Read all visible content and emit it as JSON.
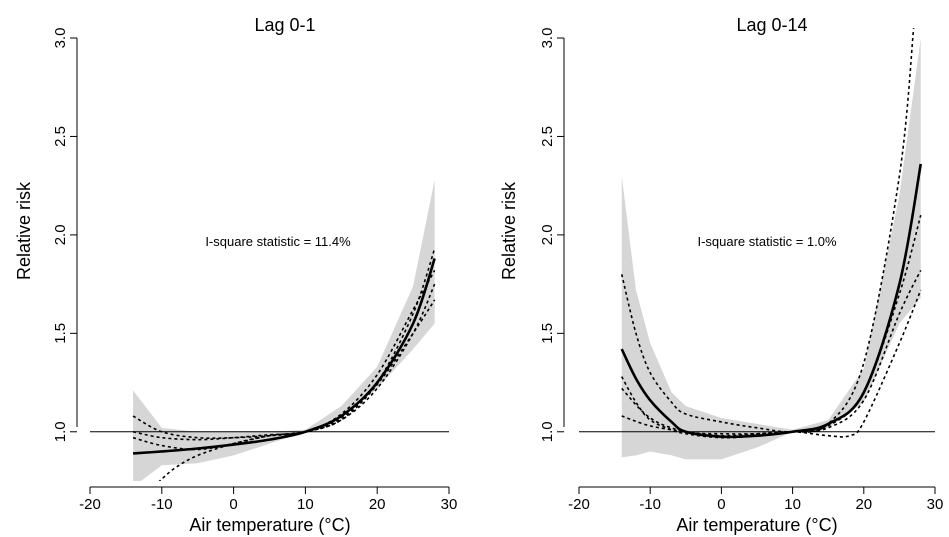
{
  "chart_data": [
    {
      "type": "line",
      "title": "Lag 0-1",
      "xlabel": "Air temperature (°C)",
      "ylabel": "Relative risk",
      "xlim": [
        -20,
        30
      ],
      "ylim": [
        0.75,
        3.0
      ],
      "xticks": [
        -20,
        -10,
        0,
        10,
        20,
        30
      ],
      "yticks": [
        1.0,
        1.5,
        2.0,
        2.5,
        3.0
      ],
      "xtick_labels": [
        "-20",
        "-10",
        "0",
        "10",
        "20",
        "30"
      ],
      "ytick_labels": [
        "1.0",
        "1.5",
        "2.0",
        "2.5",
        "3.0"
      ],
      "reference_line": 1.0,
      "annotation": "I-square statistic = 11.4%",
      "confidence_band": {
        "x": [
          -14,
          -10,
          -5,
          0,
          5,
          10,
          15,
          20,
          25,
          28
        ],
        "lower": [
          0.72,
          0.83,
          0.84,
          0.88,
          0.94,
          1.0,
          1.07,
          1.22,
          1.42,
          1.55
        ],
        "upper": [
          1.21,
          1.02,
          1.0,
          1.0,
          1.0,
          1.01,
          1.13,
          1.33,
          1.74,
          2.28
        ]
      },
      "series": [
        {
          "role": "pooled",
          "x": [
            -14,
            -10,
            -5,
            0,
            5,
            10,
            15,
            20,
            25,
            28
          ],
          "values": [
            0.89,
            0.9,
            0.915,
            0.935,
            0.96,
            1.0,
            1.08,
            1.25,
            1.55,
            1.88
          ]
        },
        {
          "role": "city",
          "x": [
            -14,
            -10,
            -5,
            0,
            5,
            10,
            15,
            20,
            25,
            28
          ],
          "values": [
            1.08,
            1.0,
            0.97,
            0.97,
            0.98,
            1.0,
            1.07,
            1.25,
            1.6,
            1.93
          ]
        },
        {
          "role": "city",
          "x": [
            -14,
            -10,
            -5,
            0,
            5,
            10,
            15,
            20,
            25,
            28
          ],
          "values": [
            0.97,
            0.93,
            0.91,
            0.94,
            0.98,
            1.0,
            1.06,
            1.22,
            1.5,
            1.75
          ]
        },
        {
          "role": "city",
          "x": [
            -14,
            -10,
            -5,
            0,
            5,
            10,
            15,
            20,
            25,
            28
          ],
          "values": [
            1.0,
            0.97,
            0.96,
            0.97,
            0.985,
            1.0,
            1.09,
            1.29,
            1.62,
            1.82
          ]
        },
        {
          "role": "city",
          "x": [
            -11,
            -10,
            -8,
            -5,
            0,
            5,
            10,
            15,
            20,
            25,
            28
          ],
          "values": [
            0.72,
            0.76,
            0.82,
            0.88,
            0.94,
            0.98,
            1.0,
            1.06,
            1.24,
            1.5,
            1.67
          ]
        }
      ]
    },
    {
      "type": "line",
      "title": "Lag 0-14",
      "xlabel": "Air temperature (°C)",
      "ylabel": "Relative risk",
      "xlim": [
        -20,
        30
      ],
      "ylim": [
        0.75,
        3.0
      ],
      "xticks": [
        -20,
        -10,
        0,
        10,
        20,
        30
      ],
      "yticks": [
        1.0,
        1.5,
        2.0,
        2.5,
        3.0
      ],
      "xtick_labels": [
        "-20",
        "-10",
        "0",
        "10",
        "20",
        "30"
      ],
      "ytick_labels": [
        "1.0",
        "1.5",
        "2.0",
        "2.5",
        "3.0"
      ],
      "reference_line": 1.0,
      "annotation": "I-square statistic = 1.0%",
      "confidence_band": {
        "x": [
          -14,
          -12,
          -10,
          -7,
          -5,
          0,
          5,
          10,
          15,
          20,
          25,
          28
        ],
        "lower": [
          0.87,
          0.88,
          0.9,
          0.88,
          0.86,
          0.86,
          0.92,
          1.0,
          1.02,
          1.15,
          1.55,
          1.68
        ],
        "upper": [
          2.3,
          1.72,
          1.45,
          1.2,
          1.13,
          1.07,
          1.04,
          1.01,
          1.06,
          1.32,
          2.2,
          3.0
        ]
      },
      "series": [
        {
          "role": "pooled",
          "x": [
            -14,
            -12,
            -10,
            -7,
            -5,
            0,
            5,
            10,
            15,
            20,
            25,
            28
          ],
          "values": [
            1.42,
            1.27,
            1.16,
            1.05,
            1.0,
            0.975,
            0.98,
            1.0,
            1.04,
            1.2,
            1.75,
            2.36
          ]
        },
        {
          "role": "city",
          "x": [
            -14,
            -12,
            -10,
            -7,
            -5,
            0,
            5,
            10,
            15,
            20,
            25,
            27
          ],
          "values": [
            1.8,
            1.5,
            1.3,
            1.15,
            1.09,
            1.05,
            1.02,
            1.0,
            1.04,
            1.35,
            2.3,
            3.05
          ]
        },
        {
          "role": "city",
          "x": [
            -14,
            -12,
            -10,
            -7,
            -5,
            0,
            5,
            10,
            15,
            20,
            25,
            28
          ],
          "values": [
            1.28,
            1.15,
            1.06,
            1.01,
            0.99,
            0.97,
            0.98,
            1.0,
            1.03,
            1.2,
            1.7,
            2.1
          ]
        },
        {
          "role": "city",
          "x": [
            -14,
            -10,
            -5,
            0,
            5,
            10,
            15,
            20,
            25,
            28
          ],
          "values": [
            1.08,
            1.03,
            1.0,
            0.98,
            0.99,
            1.0,
            1.02,
            1.16,
            1.6,
            1.82
          ]
        },
        {
          "role": "city",
          "x": [
            -14,
            -10,
            -5,
            0,
            5,
            10,
            15,
            18,
            20,
            25,
            28
          ],
          "values": [
            1.22,
            1.07,
            1.0,
            0.99,
            0.99,
            1.0,
            0.98,
            0.98,
            1.05,
            1.45,
            1.72
          ]
        }
      ]
    }
  ]
}
